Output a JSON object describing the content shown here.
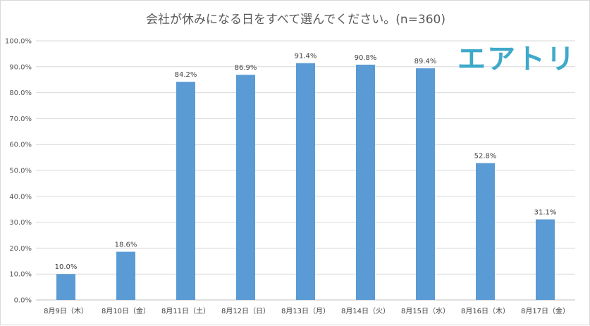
{
  "chart_data": {
    "type": "bar",
    "title": "会社が休みになる日をすべて選んでください。(n=360)",
    "categories": [
      "8月9日（木）",
      "8月10日（金）",
      "8月11日（土）",
      "8月12日（日）",
      "8月13日（月）",
      "8月14日（火）",
      "8月15日（水）",
      "8月16日（木）",
      "8月17日（金）"
    ],
    "values": [
      10.0,
      18.6,
      84.2,
      86.9,
      91.4,
      90.8,
      89.4,
      52.8,
      31.1
    ],
    "data_labels": [
      "10.0%",
      "18.6%",
      "84.2%",
      "86.9%",
      "91.4%",
      "90.8%",
      "89.4%",
      "52.8%",
      "31.1%"
    ],
    "y_ticks": [
      "0.0%",
      "10.0%",
      "20.0%",
      "30.0%",
      "40.0%",
      "50.0%",
      "60.0%",
      "70.0%",
      "80.0%",
      "90.0%",
      "100.0%"
    ],
    "ylim": [
      0,
      100
    ],
    "xlabel": "",
    "ylabel": "",
    "grid": true,
    "bar_color": "#5b9bd5"
  },
  "logo_text": "エアトリ"
}
